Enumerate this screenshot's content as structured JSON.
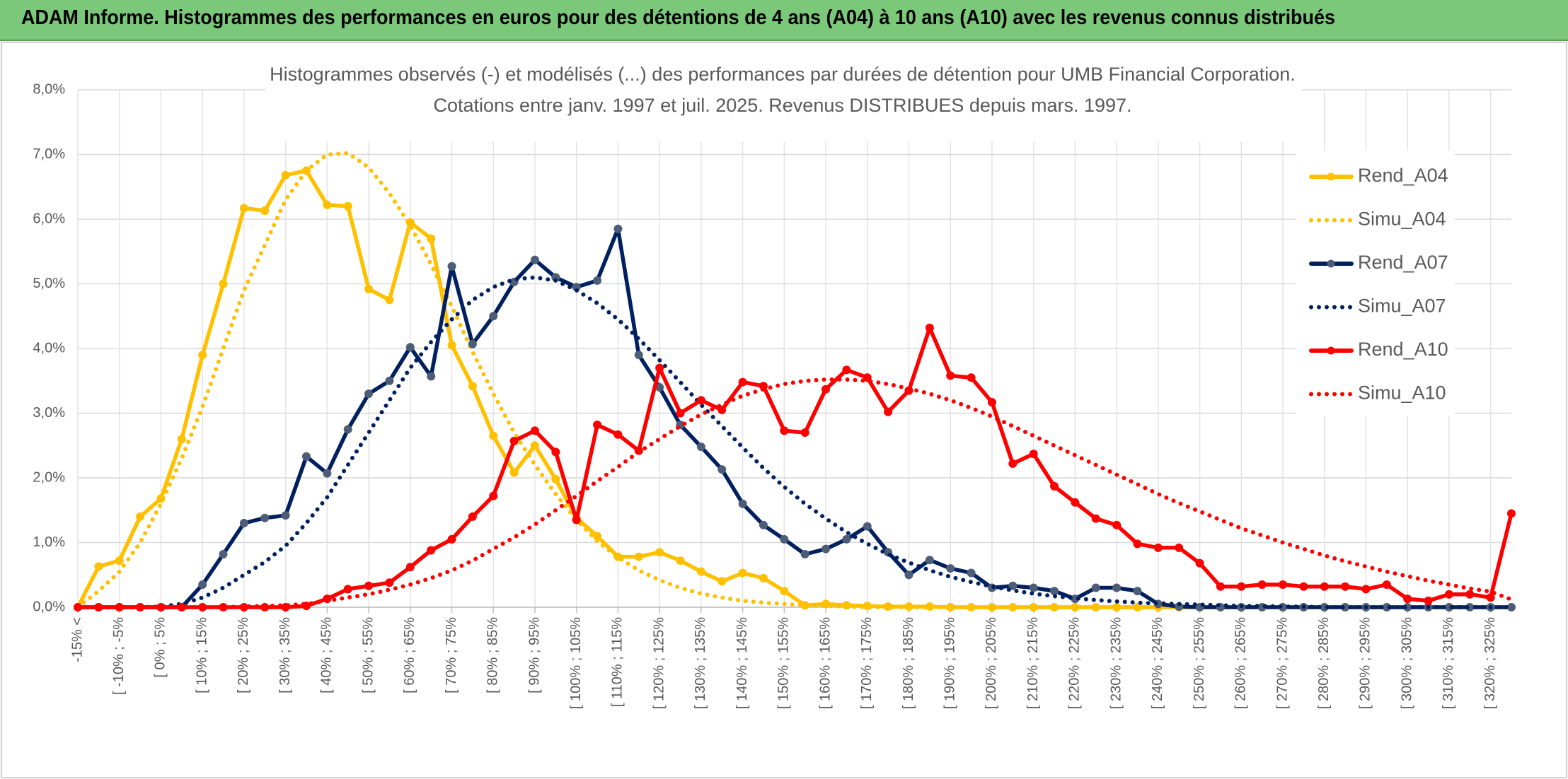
{
  "header": {
    "title": "ADAM Informe. Histogrammes des performances en euros pour des détentions de 4 ans (A04) à 10 ans (A10) avec les revenus connus distribués"
  },
  "chart_data": {
    "type": "line",
    "title": "Histogrammes observés (-) et modélisés (...) des performances par durées de détention pour UMB Financial Corporation.",
    "subtitle": "Cotations entre janv. 1997 et juil. 2025. Revenus DISTRIBUES depuis mars. 1997.",
    "categories": [
      "-15% <",
      null,
      "[ -10% ; -5%",
      null,
      "[ 0% ; 5%",
      null,
      "[ 10% ; 15%",
      null,
      "[ 20% ; 25%",
      null,
      "[ 30% ; 35%",
      null,
      "[ 40% ; 45%",
      null,
      "[ 50% ; 55%",
      null,
      "[ 60% ; 65%",
      null,
      "[ 70% ; 75%",
      null,
      "[ 80% ; 85%",
      null,
      "[ 90% ; 95%",
      null,
      "[ 100% ; 105%",
      null,
      "[ 110% ; 115%",
      null,
      "[ 120% ; 125%",
      null,
      "[ 130% ; 135%",
      null,
      "[ 140% ; 145%",
      null,
      "[ 150% ; 155%",
      null,
      "[ 160% ; 165%",
      null,
      "[ 170% ; 175%",
      null,
      "[ 180% ; 185%",
      null,
      "[ 190% ; 195%",
      null,
      "[ 200% ; 205%",
      null,
      "[ 210% ; 215%",
      null,
      "[ 220% ; 225%",
      null,
      "[ 230% ; 235%",
      null,
      "[ 240% ; 245%",
      null,
      "[ 250% ; 255%",
      null,
      "[ 260% ; 265%",
      null,
      "[ 270% ; 275%",
      null,
      "[ 280% ; 285%",
      null,
      "[ 290% ; 295%",
      null,
      "[ 300% ; 305%",
      null,
      "[ 310% ; 315%",
      null,
      "[ 320% ; 325%",
      null
    ],
    "series": [
      {
        "name": "Rend_A04",
        "color": "#ffc000",
        "line_style": "solid",
        "markers": true,
        "values": [
          0,
          0.63,
          0.72,
          1.4,
          1.68,
          2.6,
          3.9,
          5.0,
          6.17,
          6.13,
          6.68,
          6.75,
          6.22,
          6.2,
          4.92,
          4.75,
          5.95,
          5.7,
          4.05,
          3.42,
          2.65,
          2.08,
          2.5,
          1.98,
          1.38,
          1.1,
          0.78,
          0.78,
          0.85,
          0.72,
          0.55,
          0.4,
          0.53,
          0.45,
          0.25,
          0.03,
          0.05,
          0.03,
          0.02,
          0.01,
          0.01,
          0.01,
          0,
          0,
          0,
          0,
          0,
          0,
          0,
          0,
          0,
          0,
          0,
          0,
          0,
          0,
          0,
          0,
          0,
          0,
          0,
          0,
          0,
          0,
          0,
          0,
          0,
          0,
          0,
          0
        ]
      },
      {
        "name": "Simu_A04",
        "color": "#ffc000",
        "line_style": "dotted",
        "markers": false,
        "values": [
          0,
          0.25,
          0.55,
          1.0,
          1.6,
          2.3,
          3.1,
          4.0,
          4.9,
          5.6,
          6.3,
          6.75,
          7.0,
          7.02,
          6.8,
          6.4,
          5.9,
          5.3,
          4.65,
          3.95,
          3.3,
          2.7,
          2.2,
          1.75,
          1.35,
          1.02,
          0.77,
          0.57,
          0.42,
          0.3,
          0.21,
          0.15,
          0.1,
          0.07,
          0.05,
          0.03,
          0.02,
          0.01,
          0,
          0,
          0,
          0,
          0,
          0,
          0,
          0,
          0,
          0,
          0,
          0,
          0,
          0,
          0,
          0,
          0,
          0,
          0,
          0,
          0,
          0,
          0,
          0,
          0,
          0,
          0,
          0,
          0,
          0,
          0,
          0
        ]
      },
      {
        "name": "Rend_A07",
        "color": "#002060",
        "marker_color": "#4d5d78",
        "line_style": "solid",
        "markers": true,
        "values": [
          0,
          0,
          0,
          0,
          0,
          0,
          0.35,
          0.82,
          1.3,
          1.38,
          1.42,
          2.33,
          2.07,
          2.75,
          3.3,
          3.5,
          4.02,
          3.57,
          5.27,
          4.07,
          4.5,
          5.03,
          5.37,
          5.1,
          4.95,
          5.05,
          5.85,
          3.9,
          3.4,
          2.82,
          2.48,
          2.13,
          1.6,
          1.27,
          1.05,
          0.82,
          0.9,
          1.05,
          1.25,
          0.85,
          0.5,
          0.73,
          0.6,
          0.53,
          0.3,
          0.33,
          0.3,
          0.25,
          0.13,
          0.3,
          0.3,
          0.25,
          0.05,
          0.01,
          0,
          0,
          0,
          0,
          0,
          0,
          0,
          0,
          0,
          0,
          0,
          0,
          0,
          0,
          0,
          0
        ]
      },
      {
        "name": "Simu_A07",
        "color": "#002060",
        "line_style": "dotted",
        "markers": false,
        "values": [
          0,
          0,
          0,
          0,
          0.01,
          0.05,
          0.15,
          0.3,
          0.5,
          0.7,
          0.95,
          1.3,
          1.7,
          2.2,
          2.7,
          3.2,
          3.7,
          4.1,
          4.45,
          4.75,
          4.95,
          5.07,
          5.1,
          5.05,
          4.9,
          4.7,
          4.45,
          4.15,
          3.82,
          3.48,
          3.13,
          2.8,
          2.47,
          2.15,
          1.86,
          1.6,
          1.37,
          1.16,
          0.98,
          0.82,
          0.69,
          0.57,
          0.47,
          0.39,
          0.32,
          0.26,
          0.21,
          0.17,
          0.14,
          0.11,
          0.09,
          0.07,
          0.06,
          0.05,
          0.04,
          0.03,
          0.02,
          0.02,
          0.01,
          0.01,
          0,
          0,
          0,
          0,
          0,
          0,
          0,
          0,
          0,
          0
        ]
      },
      {
        "name": "Rend_A10",
        "color": "#ff0000",
        "line_style": "solid",
        "markers": true,
        "values": [
          0,
          0,
          0,
          0,
          0,
          0,
          0,
          0,
          0,
          0,
          0,
          0.02,
          0.13,
          0.28,
          0.33,
          0.38,
          0.62,
          0.88,
          1.05,
          1.4,
          1.72,
          2.57,
          2.73,
          2.4,
          1.35,
          2.82,
          2.67,
          2.42,
          3.7,
          3.0,
          3.2,
          3.05,
          3.48,
          3.42,
          2.73,
          2.7,
          3.37,
          3.67,
          3.55,
          3.02,
          3.35,
          4.32,
          3.58,
          3.55,
          3.17,
          2.22,
          2.37,
          1.87,
          1.62,
          1.37,
          1.27,
          0.98,
          0.92,
          0.92,
          0.68,
          0.32,
          0.32,
          0.35,
          0.35,
          0.32,
          0.32,
          0.32,
          0.28,
          0.35,
          0.13,
          0.1,
          0.2,
          0.2,
          0.15,
          1.45
        ]
      },
      {
        "name": "Simu_A10",
        "color": "#ff0000",
        "line_style": "dotted",
        "markers": false,
        "values": [
          0,
          0,
          0,
          0,
          0,
          0,
          0,
          0,
          0.01,
          0.02,
          0.03,
          0.05,
          0.1,
          0.15,
          0.2,
          0.27,
          0.35,
          0.45,
          0.57,
          0.72,
          0.9,
          1.08,
          1.28,
          1.5,
          1.72,
          1.95,
          2.17,
          2.4,
          2.6,
          2.8,
          2.98,
          3.13,
          3.27,
          3.37,
          3.45,
          3.5,
          3.52,
          3.52,
          3.5,
          3.45,
          3.38,
          3.3,
          3.2,
          3.08,
          2.95,
          2.8,
          2.65,
          2.5,
          2.35,
          2.2,
          2.05,
          1.9,
          1.75,
          1.61,
          1.48,
          1.35,
          1.22,
          1.11,
          1.0,
          0.9,
          0.8,
          0.71,
          0.63,
          0.55,
          0.48,
          0.41,
          0.35,
          0.29,
          0.24,
          0.12
        ]
      }
    ],
    "ylim": [
      0,
      8
    ],
    "yticks": [
      {
        "value": 0,
        "label": "0,0%"
      },
      {
        "value": 1,
        "label": "1,0%"
      },
      {
        "value": 2,
        "label": "2,0%"
      },
      {
        "value": 3,
        "label": "3,0%"
      },
      {
        "value": 4,
        "label": "4,0%"
      },
      {
        "value": 5,
        "label": "5,0%"
      },
      {
        "value": 6,
        "label": "6,0%"
      },
      {
        "value": 7,
        "label": "7,0%"
      },
      {
        "value": 8,
        "label": "8,0%"
      }
    ],
    "grid": true,
    "legend": "right"
  }
}
